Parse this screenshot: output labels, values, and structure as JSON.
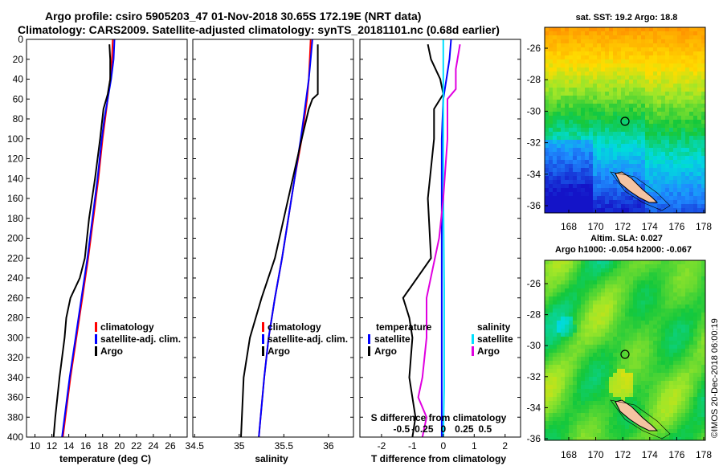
{
  "title": {
    "line1": "Argo profile: csiro 5905203_47 01-Nov-2018 30.65S 172.19E (NRT data)",
    "line2": "Climatology: CARS2009. Satellite-adjusted climatology: synTS_20181101.nc (0.68d earlier)"
  },
  "colors": {
    "climatology": "#ff0000",
    "satellite_adj": "#0000ff",
    "argo": "#000000",
    "s_satellite": "#00e0ff",
    "s_argo": "#e000e0"
  },
  "chart_data": [
    {
      "id": "temperature",
      "type": "line",
      "xlabel": "temperature (deg C)",
      "ylabel": "",
      "xlim": [
        9,
        28
      ],
      "ylim": [
        400,
        0
      ],
      "xticks": [
        10,
        12,
        14,
        16,
        18,
        20,
        22,
        24,
        26
      ],
      "yticks": [
        0,
        20,
        40,
        60,
        80,
        100,
        120,
        140,
        160,
        180,
        200,
        220,
        240,
        260,
        280,
        300,
        320,
        340,
        360,
        380,
        400
      ],
      "legend": [
        "climatology",
        "satellite-adj. clim.",
        "Argo"
      ],
      "series": [
        {
          "name": "climatology",
          "depth": [
            0,
            20,
            40,
            60,
            80,
            100,
            140,
            180,
            220,
            260,
            300,
            340,
            380,
            400
          ],
          "values": [
            19.2,
            19.1,
            18.9,
            18.6,
            18.3,
            18.0,
            17.5,
            16.9,
            16.3,
            15.6,
            14.9,
            14.2,
            13.6,
            13.3
          ]
        },
        {
          "name": "satellite-adj. clim.",
          "depth": [
            0,
            20,
            40,
            60,
            80,
            100,
            140,
            180,
            220,
            260,
            300,
            340,
            380,
            400
          ],
          "values": [
            19.4,
            19.3,
            19.0,
            18.6,
            18.2,
            17.9,
            17.4,
            16.8,
            16.2,
            15.5,
            14.8,
            14.1,
            13.5,
            13.2
          ]
        },
        {
          "name": "Argo",
          "depth": [
            5,
            20,
            40,
            55,
            70,
            100,
            140,
            180,
            220,
            240,
            260,
            280,
            300,
            340,
            380,
            400
          ],
          "values": [
            18.8,
            18.9,
            18.9,
            18.6,
            18.1,
            17.7,
            17.1,
            16.4,
            15.9,
            15.3,
            14.2,
            13.7,
            13.5,
            12.9,
            12.4,
            12.2
          ]
        }
      ]
    },
    {
      "id": "salinity",
      "type": "line",
      "xlabel": "salinity",
      "ylabel": "",
      "xlim": [
        34.48,
        36.28
      ],
      "ylim": [
        400,
        0
      ],
      "xticks": [
        34.5,
        35,
        35.5,
        36
      ],
      "xticklabels": [
        "34.5",
        "35",
        "35.5",
        "36"
      ],
      "legend": [
        "climatology",
        "satellite-adj. clim.",
        "Argo"
      ],
      "series": [
        {
          "name": "climatology",
          "depth": [
            0,
            20,
            40,
            60,
            80,
            100,
            140,
            180,
            220,
            260,
            300,
            340,
            380,
            400
          ],
          "values": [
            35.8,
            35.79,
            35.78,
            35.76,
            35.73,
            35.7,
            35.62,
            35.55,
            35.48,
            35.4,
            35.33,
            35.28,
            35.24,
            35.22
          ]
        },
        {
          "name": "satellite-adj. clim.",
          "depth": [
            0,
            20,
            40,
            60,
            80,
            100,
            140,
            180,
            220,
            260,
            300,
            340,
            380,
            400
          ],
          "values": [
            35.82,
            35.8,
            35.78,
            35.75,
            35.72,
            35.69,
            35.62,
            35.55,
            35.48,
            35.4,
            35.33,
            35.28,
            35.24,
            35.22
          ]
        },
        {
          "name": "Argo",
          "depth": [
            5,
            20,
            40,
            55,
            60,
            70,
            100,
            140,
            180,
            220,
            260,
            300,
            340,
            380,
            400
          ],
          "values": [
            35.88,
            35.88,
            35.88,
            35.88,
            35.82,
            35.78,
            35.7,
            35.6,
            35.5,
            35.4,
            35.25,
            35.12,
            35.05,
            35.03,
            35.02
          ]
        }
      ]
    },
    {
      "id": "difference",
      "type": "line",
      "xlabel": "T difference from climatology",
      "xlabel_top": "S difference from climatology",
      "xlim": [
        -2.7,
        2.5
      ],
      "ylim": [
        400,
        0
      ],
      "xticks": [
        -2,
        -1,
        0,
        1,
        2
      ],
      "s_xticks": [
        "-0.5",
        "-0.25",
        "0",
        "0.25",
        "0.5"
      ],
      "legend_left_title": "temperature",
      "legend_right_title": "salinity",
      "legend_left": [
        "satellite",
        "Argo"
      ],
      "legend_right": [
        "satellite",
        "Argo"
      ],
      "series": [
        {
          "name": "T satellite",
          "depth": [
            0,
            20,
            40,
            60,
            100,
            200,
            300,
            400
          ],
          "values": [
            0.25,
            0.2,
            0.1,
            0.0,
            -0.05,
            -0.05,
            -0.05,
            -0.05
          ]
        },
        {
          "name": "T Argo",
          "depth": [
            5,
            20,
            40,
            55,
            70,
            100,
            160,
            220,
            260,
            280,
            300,
            340,
            380,
            400
          ],
          "values": [
            -0.5,
            -0.4,
            -0.1,
            0.0,
            -0.3,
            -0.3,
            -0.5,
            -0.4,
            -1.3,
            -1.1,
            -1.0,
            -1.1,
            -0.9,
            -1.0
          ]
        },
        {
          "name": "S satellite",
          "depth": [
            0,
            40,
            80,
            150,
            250,
            350,
            400
          ],
          "values": [
            0.0,
            0.0,
            0.0,
            0.0,
            0.01,
            0.01,
            0.0
          ]
        },
        {
          "name": "S Argo",
          "depth": [
            5,
            30,
            50,
            60,
            100,
            160,
            200,
            260,
            300,
            340,
            360,
            380,
            400
          ],
          "values": [
            0.2,
            0.15,
            0.15,
            0.05,
            0.05,
            0.0,
            -0.05,
            -0.2,
            -0.2,
            -0.25,
            -0.3,
            -0.2,
            -0.25
          ]
        }
      ]
    },
    {
      "id": "sst-map",
      "type": "heatmap",
      "title": "sat. SST: 19.2 Argo: 18.8",
      "xticks": [
        "168",
        "170",
        "172",
        "174",
        "176",
        "178"
      ],
      "yticks": [
        "-26",
        "-28",
        "-30",
        "-32",
        "-34",
        "-36"
      ]
    },
    {
      "id": "sla-map",
      "type": "heatmap",
      "title": "Altim. SLA: 0.027",
      "subtitle": "Argo h1000: -0.054 h2000: -0.067",
      "xticks": [
        "168",
        "170",
        "172",
        "174",
        "176",
        "178"
      ],
      "yticks": [
        "-26",
        "-28",
        "-30",
        "-32",
        "-34",
        "-36"
      ]
    }
  ],
  "stamp": "©IMOS 20-Dec-2018 06:00:19"
}
